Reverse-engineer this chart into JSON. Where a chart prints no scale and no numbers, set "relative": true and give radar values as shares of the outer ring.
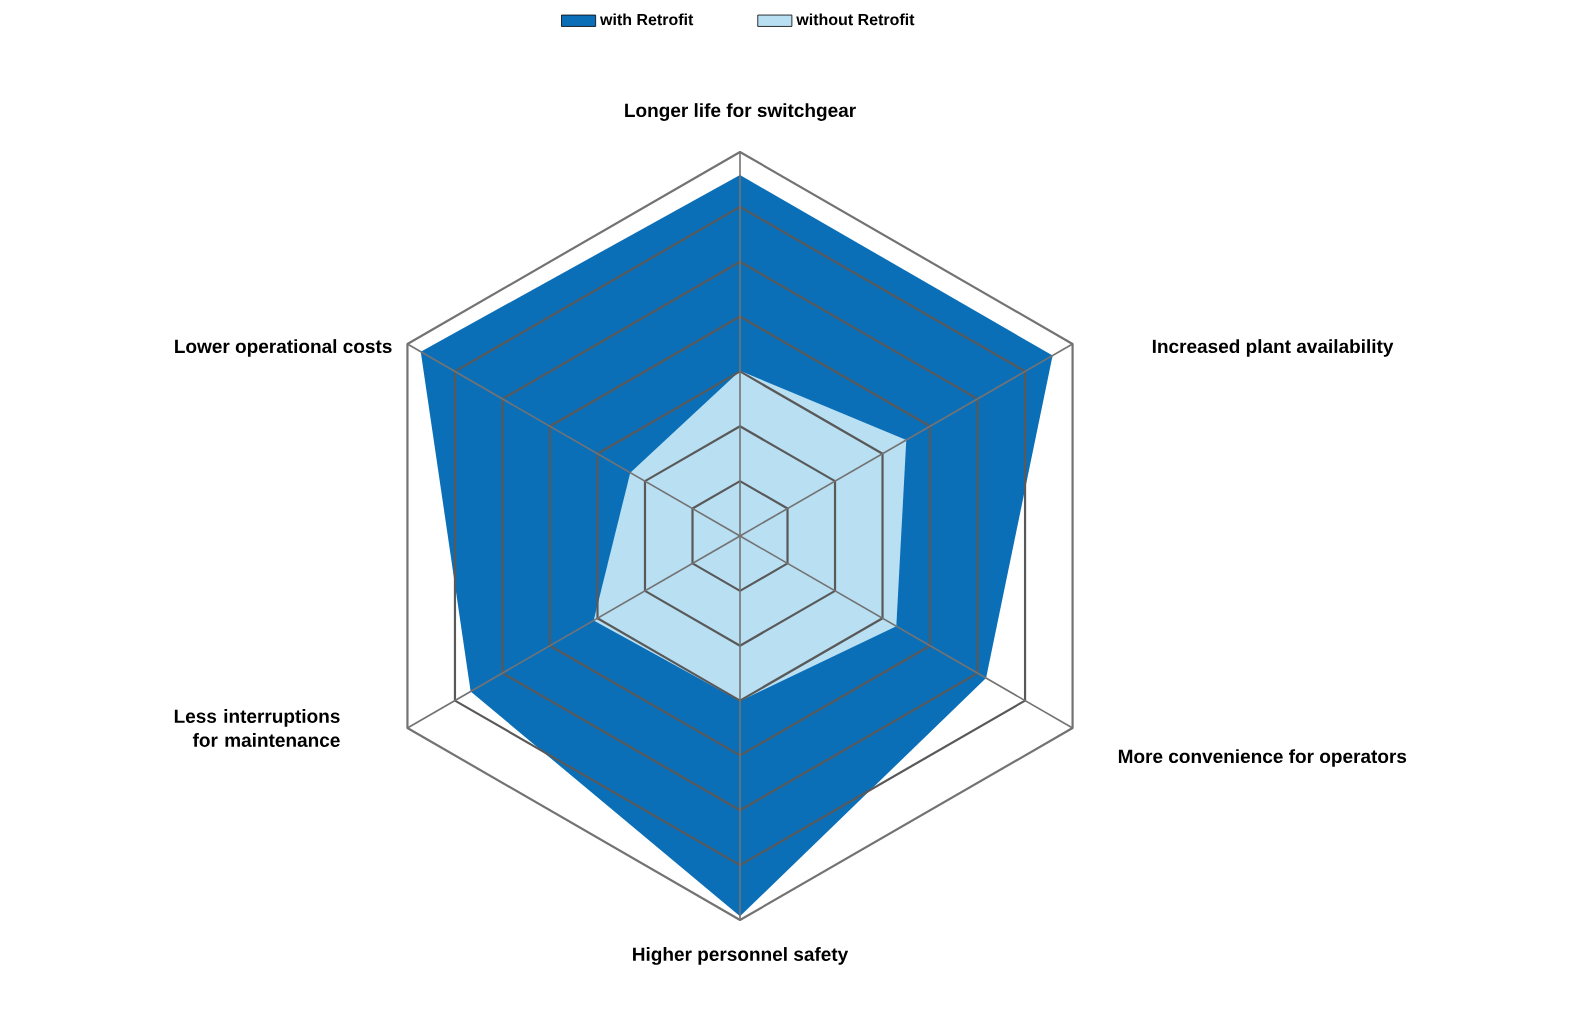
{
  "chart_data": {
    "type": "radar",
    "relative": true,
    "grid": true,
    "legend": "top",
    "marker": "none",
    "categories": [
      "Longer life for switchgear",
      "Increased plant availability",
      "More convenience for operators",
      "Higher personnel safety",
      "Less interruptions for maintenance",
      "Lower operational costs"
    ],
    "series": [
      {
        "name": "with Retrofit",
        "color": "#0b6fb8",
        "values": [
          0.94,
          0.94,
          0.74,
          0.99,
          0.81,
          0.96
        ]
      },
      {
        "name": "without Retrofit",
        "color": "#b9dff2",
        "values": [
          0.43,
          0.5,
          0.47,
          0.43,
          0.44,
          0.33
        ]
      }
    ]
  }
}
